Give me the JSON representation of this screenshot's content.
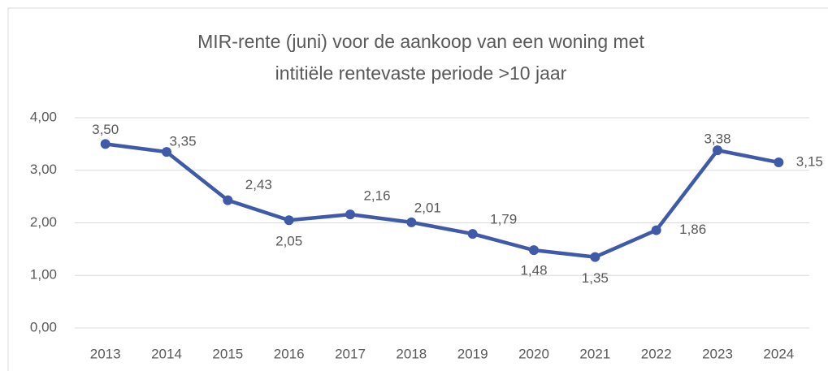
{
  "chart_data": {
    "type": "line",
    "title": [
      "MIR-rente (juni) voor de aankoop van een woning met",
      "intitiële rentevaste periode >10 jaar"
    ],
    "categories": [
      "2013",
      "2014",
      "2015",
      "2016",
      "2017",
      "2018",
      "2019",
      "2020",
      "2021",
      "2022",
      "2023",
      "2024"
    ],
    "series": [
      {
        "color": "#3f5aa8",
        "values": [
          3.5,
          3.35,
          2.43,
          2.05,
          2.16,
          2.01,
          1.79,
          1.48,
          1.35,
          1.86,
          3.38,
          3.15
        ],
        "value_labels": [
          "3,50",
          "3,35",
          "2,43",
          "2,05",
          "2,16",
          "2,01",
          "1,79",
          "1,48",
          "1,35",
          "1,86",
          "3,38",
          "3,15"
        ]
      }
    ],
    "ylim": [
      0,
      4
    ],
    "yticks": [
      {
        "value": 0,
        "label": "0,00"
      },
      {
        "value": 1,
        "label": "1,00"
      },
      {
        "value": 2,
        "label": "2,00"
      },
      {
        "value": 3,
        "label": "3,00"
      },
      {
        "value": 4,
        "label": "4,00"
      }
    ],
    "grid": true
  }
}
